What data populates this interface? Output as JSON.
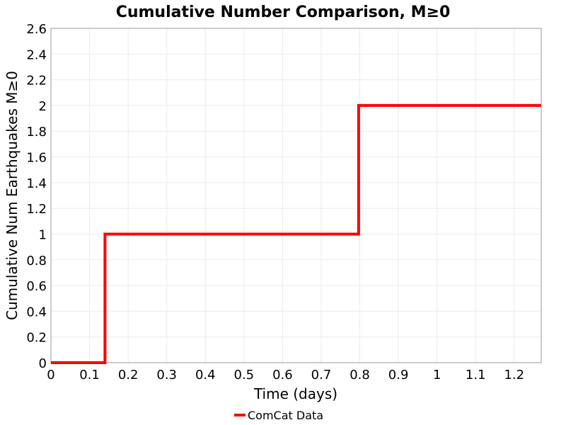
{
  "chart_data": {
    "type": "line",
    "title": "Cumulative Number Comparison, M≥0",
    "xlabel": "Time (days)",
    "ylabel": "Cumulative Num Earthquakes M≥0",
    "xlim": [
      0,
      1.27
    ],
    "ylim": [
      0,
      2.6
    ],
    "xticks": [
      "0",
      "0.1",
      "0.2",
      "0.3",
      "0.4",
      "0.5",
      "0.6",
      "0.7",
      "0.8",
      "0.9",
      "1",
      "1.1",
      "1.2"
    ],
    "yticks": [
      "0",
      "0.2",
      "0.4",
      "0.6",
      "0.8",
      "1",
      "1.2",
      "1.4",
      "1.6",
      "1.8",
      "2",
      "2.2",
      "2.4",
      "2.6"
    ],
    "grid": true,
    "legend_position": "bottom",
    "series": [
      {
        "name": "ComCat Data",
        "color": "#ff0000",
        "step": true,
        "x": [
          0,
          0.14,
          0.14,
          0.797,
          0.797,
          1.27
        ],
        "y": [
          0,
          0,
          1,
          1,
          2,
          2
        ]
      }
    ]
  }
}
